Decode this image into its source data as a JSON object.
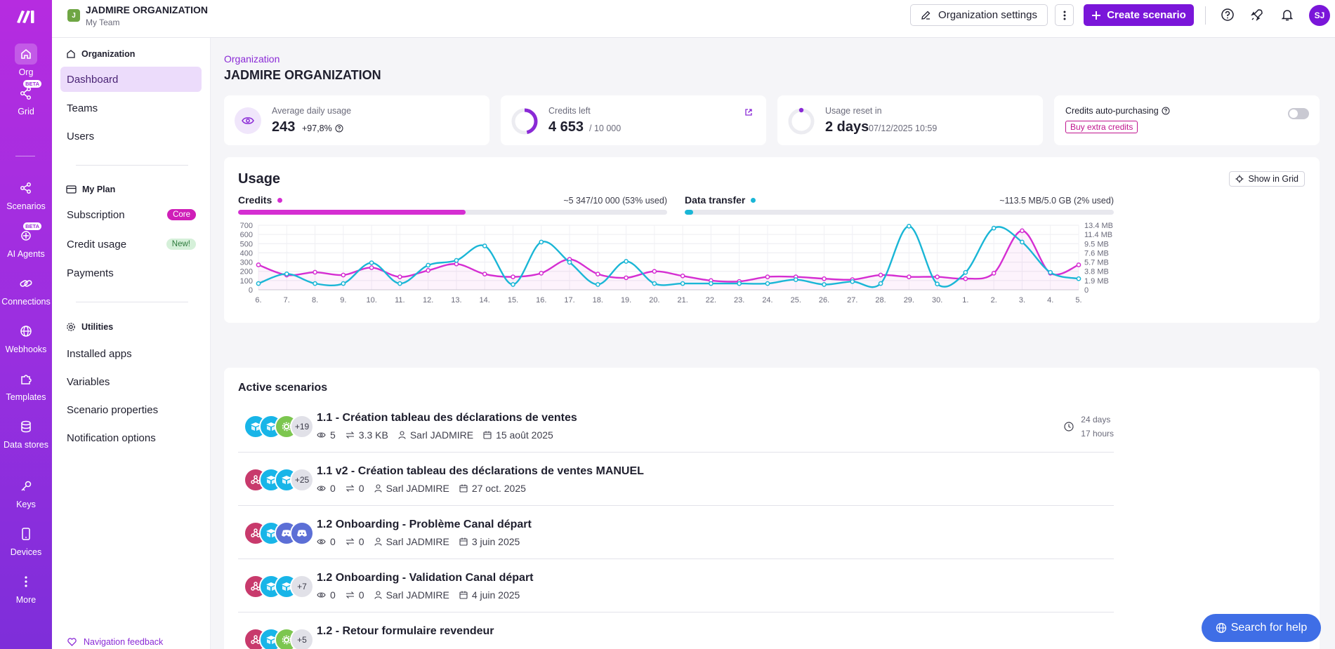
{
  "rail": {
    "items": [
      {
        "label": "Org",
        "icon": "home-icon"
      },
      {
        "label": "Grid",
        "icon": "grid-icon",
        "badge": "BETA"
      },
      {
        "label": "Scenarios",
        "icon": "share-icon"
      },
      {
        "label": "AI Agents",
        "icon": "ai-agents-icon",
        "badge": "BETA"
      },
      {
        "label": "Connections",
        "icon": "link-icon"
      },
      {
        "label": "Webhooks",
        "icon": "globe-icon"
      },
      {
        "label": "Templates",
        "icon": "puzzle-icon"
      },
      {
        "label": "Data stores",
        "icon": "database-icon"
      },
      {
        "label": "Keys",
        "icon": "key-icon"
      },
      {
        "label": "Devices",
        "icon": "phone-icon"
      },
      {
        "label": "More",
        "icon": "more-icon"
      }
    ]
  },
  "header": {
    "org_initial": "J",
    "org_name": "JADMIRE ORGANIZATION",
    "team": "My Team",
    "settings_label": "Organization settings",
    "create_label": "Create scenario",
    "avatar": "SJ"
  },
  "sidebar": {
    "sections": [
      {
        "title": "Organization",
        "items": [
          "Dashboard",
          "Teams",
          "Users"
        ]
      },
      {
        "title": "My Plan",
        "items": [
          "Subscription",
          "Credit usage",
          "Payments"
        ]
      },
      {
        "title": "Utilities",
        "items": [
          "Installed apps",
          "Variables",
          "Scenario properties",
          "Notification options"
        ]
      }
    ],
    "pill_core": "Core",
    "pill_new": "New!",
    "feedback": "Navigation feedback"
  },
  "main": {
    "breadcrumb": "Organization",
    "title": "JADMIRE ORGANIZATION"
  },
  "stats": {
    "avg": {
      "label": "Average daily usage",
      "value": "243",
      "delta": "+97,8%"
    },
    "credits": {
      "label": "Credits left",
      "value": "4 653",
      "total": "/ 10 000",
      "fraction_used": 0.5347
    },
    "reset": {
      "label": "Usage reset in",
      "value": "2 days",
      "date": "07/12/2025 10:59"
    },
    "auto": {
      "label": "Credits auto-purchasing",
      "buy": "Buy extra credits",
      "enabled": false
    }
  },
  "usage": {
    "title": "Usage",
    "grid_button": "Show in Grid",
    "credits": {
      "label": "Credits",
      "value": "~5 347/10 000 (53% used)",
      "fraction": 0.53,
      "color": "#d52ed2"
    },
    "transfer": {
      "label": "Data transfer",
      "value": "~113.5 MB/5.0 GB (2% used)",
      "fraction": 0.02,
      "color": "#1ab6d6"
    }
  },
  "chart_data": {
    "type": "line",
    "x": [
      "6.",
      "7.",
      "8.",
      "9.",
      "10.",
      "11.",
      "12.",
      "13.",
      "14.",
      "15.",
      "16.",
      "17.",
      "18.",
      "19.",
      "20.",
      "21.",
      "22.",
      "23.",
      "24.",
      "25.",
      "26.",
      "27.",
      "28.",
      "29.",
      "30.",
      "1.",
      "2.",
      "3.",
      "4.",
      "5."
    ],
    "y_left_ticks": [
      "0",
      "100",
      "200",
      "300",
      "400",
      "500",
      "600",
      "700"
    ],
    "y_right_ticks": [
      "0",
      "1.9 MB",
      "3.8 MB",
      "5.7 MB",
      "7.6 MB",
      "9.5 MB",
      "11.4 MB",
      "13.4 MB"
    ],
    "ylim": [
      0,
      700
    ],
    "series": [
      {
        "name": "Credits",
        "color": "#d52ed2",
        "axis": "left",
        "values": [
          270,
          160,
          190,
          160,
          240,
          140,
          210,
          280,
          170,
          140,
          180,
          330,
          170,
          130,
          200,
          150,
          100,
          90,
          140,
          140,
          120,
          110,
          160,
          140,
          140,
          120,
          180,
          640,
          180,
          270
        ]
      },
      {
        "name": "Data transfer",
        "color": "#1ab6d6",
        "axis": "right",
        "values": [
          1.3,
          3.3,
          1.3,
          1.3,
          5.6,
          1.3,
          5.1,
          6.1,
          9.1,
          1.1,
          9.9,
          5.7,
          1.1,
          5.9,
          1.3,
          1.3,
          1.3,
          1.3,
          1.3,
          2.1,
          1.1,
          1.7,
          1.3,
          13.2,
          1.2,
          3.6,
          12.8,
          9.9,
          3.6,
          2.3
        ]
      }
    ],
    "grid": true
  },
  "scenarios": {
    "title": "Active scenarios",
    "rows": [
      {
        "name": "1.1 - Création tableau des déclarations de ventes",
        "views": "5",
        "transfer": "3.3 KB",
        "owner": "Sarl JADMIRE",
        "date": "15 août 2025",
        "more": "+19",
        "icons": [
          "airtable",
          "airtable",
          "tools"
        ],
        "sched1": "24 days",
        "sched2": "17 hours"
      },
      {
        "name": "1.1 v2 - Création tableau des déclarations de ventes MANUEL",
        "views": "0",
        "transfer": "0",
        "owner": "Sarl JADMIRE",
        "date": "27 oct. 2025",
        "more": "+25",
        "icons": [
          "webhook",
          "airtable",
          "airtable"
        ],
        "sched1": "",
        "sched2": ""
      },
      {
        "name": "1.2 Onboarding - Problème Canal départ",
        "views": "0",
        "transfer": "0",
        "owner": "Sarl JADMIRE",
        "date": "3 juin 2025",
        "more": "",
        "icons": [
          "webhook",
          "airtable",
          "discord",
          "discord"
        ],
        "sched1": "",
        "sched2": ""
      },
      {
        "name": "1.2 Onboarding - Validation Canal départ",
        "views": "0",
        "transfer": "0",
        "owner": "Sarl JADMIRE",
        "date": "4 juin 2025",
        "more": "+7",
        "icons": [
          "webhook",
          "airtable",
          "airtable"
        ],
        "sched1": "",
        "sched2": ""
      },
      {
        "name": "1.2 - Retour formulaire revendeur",
        "views": "",
        "transfer": "",
        "owner": "",
        "date": "",
        "more": "+5",
        "icons": [
          "webhook",
          "airtable",
          "tools"
        ],
        "sched1": "",
        "sched2": ""
      }
    ]
  },
  "help_button": "Search for help"
}
